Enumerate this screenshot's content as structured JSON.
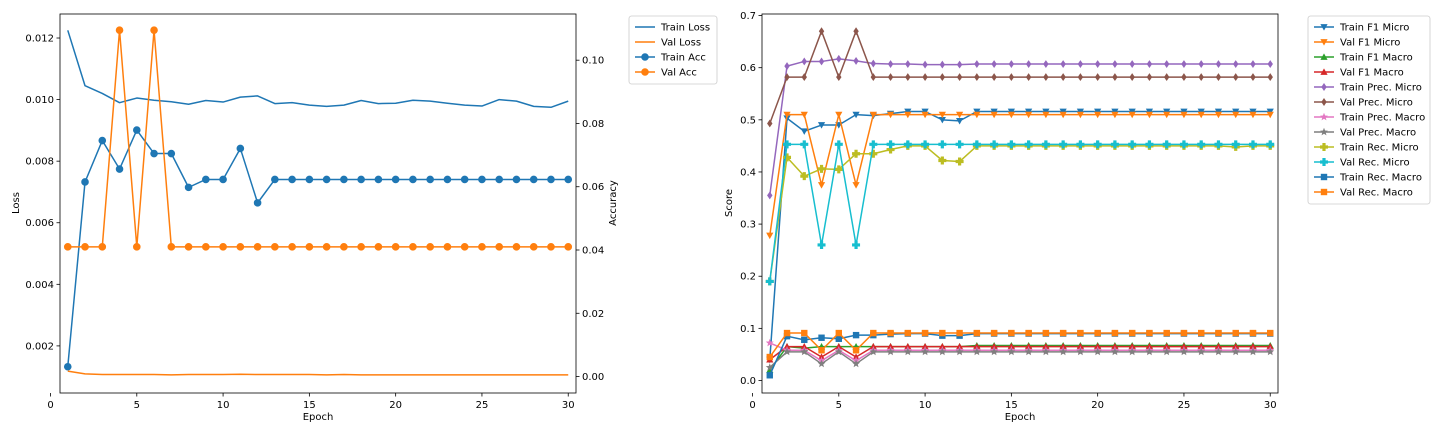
{
  "colors": {
    "blue": "#1f77b4",
    "orange": "#ff7f0e",
    "green": "#2ca02c",
    "red": "#d62728",
    "purple": "#9467bd",
    "brown": "#8c564b",
    "pink": "#e377c2",
    "gray": "#7f7f7f",
    "olive": "#bcbd22",
    "cyan": "#17becf"
  },
  "chart_data": [
    {
      "type": "line",
      "xlabel": "Epoch",
      "ylabel": "Loss",
      "y2label": "Accuracy",
      "xlim": [
        0.55,
        30.45
      ],
      "ylim": [
        0.00047,
        0.01278
      ],
      "y2lim": [
        -0.0052,
        0.1146
      ],
      "xticks": [
        0,
        5,
        10,
        15,
        20,
        25,
        30
      ],
      "xtick_labels": [
        "0",
        "5",
        "10",
        "15",
        "20",
        "25",
        "30"
      ],
      "yticks": [
        0.002,
        0.004,
        0.006,
        0.008,
        0.01,
        0.012
      ],
      "ytick_labels": [
        "0.002",
        "0.004",
        "0.006",
        "0.008",
        "0.010",
        "0.012"
      ],
      "y2ticks": [
        0.0,
        0.02,
        0.04,
        0.06,
        0.08,
        0.1
      ],
      "y2tick_labels": [
        "0.00",
        "0.02",
        "0.04",
        "0.06",
        "0.08",
        "0.10"
      ],
      "legend_position": "outside-right",
      "x": [
        1,
        2,
        3,
        4,
        5,
        6,
        7,
        8,
        9,
        10,
        11,
        12,
        13,
        14,
        15,
        16,
        17,
        18,
        19,
        20,
        21,
        22,
        23,
        24,
        25,
        26,
        27,
        28,
        29,
        30
      ],
      "series": [
        {
          "name": "Train Loss",
          "axis": "left",
          "color": "blue",
          "marker": "none",
          "values": [
            0.01225,
            0.01045,
            0.0102,
            0.0099,
            0.01005,
            0.00998,
            0.00993,
            0.00985,
            0.00997,
            0.00992,
            0.01008,
            0.01012,
            0.00987,
            0.0099,
            0.00982,
            0.00978,
            0.00982,
            0.00997,
            0.00987,
            0.00988,
            0.00998,
            0.00995,
            0.00988,
            0.00982,
            0.00979,
            0.01,
            0.00995,
            0.00978,
            0.00975,
            0.00995
          ]
        },
        {
          "name": "Val Loss",
          "axis": "left",
          "color": "orange",
          "marker": "none",
          "values": [
            0.00118,
            0.00109,
            0.00107,
            0.00107,
            0.00107,
            0.00107,
            0.00106,
            0.00107,
            0.00107,
            0.00107,
            0.00108,
            0.00107,
            0.00107,
            0.00107,
            0.00107,
            0.00106,
            0.00107,
            0.00106,
            0.00106,
            0.00106,
            0.00106,
            0.00106,
            0.00106,
            0.00106,
            0.00106,
            0.00106,
            0.00106,
            0.00106,
            0.00106,
            0.00106
          ]
        },
        {
          "name": "Train Acc",
          "axis": "right",
          "color": "blue",
          "marker": "circle",
          "values": [
            0.0031,
            0.0615,
            0.0746,
            0.0656,
            0.0779,
            0.0705,
            0.0705,
            0.0598,
            0.0623,
            0.0623,
            0.0721,
            0.0549,
            0.0623,
            0.0623,
            0.0623,
            0.0623,
            0.0623,
            0.0623,
            0.0623,
            0.0623,
            0.0623,
            0.0623,
            0.0623,
            0.0623,
            0.0623,
            0.0623,
            0.0623,
            0.0623,
            0.0623,
            0.0623
          ]
        },
        {
          "name": "Val Acc",
          "axis": "right",
          "color": "orange",
          "marker": "circle",
          "values": [
            0.041,
            0.041,
            0.041,
            0.1095,
            0.041,
            0.1095,
            0.041,
            0.041,
            0.041,
            0.041,
            0.041,
            0.041,
            0.041,
            0.041,
            0.041,
            0.041,
            0.041,
            0.041,
            0.041,
            0.041,
            0.041,
            0.041,
            0.041,
            0.041,
            0.041,
            0.041,
            0.041,
            0.041,
            0.041,
            0.041
          ]
        }
      ]
    },
    {
      "type": "line",
      "xlabel": "Epoch",
      "ylabel": "Score",
      "xlim": [
        0.55,
        30.45
      ],
      "ylim": [
        -0.024,
        0.703
      ],
      "xticks": [
        0,
        5,
        10,
        15,
        20,
        25,
        30
      ],
      "xtick_labels": [
        "0",
        "5",
        "10",
        "15",
        "20",
        "25",
        "30"
      ],
      "yticks": [
        0.0,
        0.1,
        0.2,
        0.3,
        0.4,
        0.5,
        0.6,
        0.7
      ],
      "ytick_labels": [
        "0.0",
        "0.1",
        "0.2",
        "0.3",
        "0.4",
        "0.5",
        "0.6",
        "0.7"
      ],
      "legend_position": "outside-right",
      "x": [
        1,
        2,
        3,
        4,
        5,
        6,
        7,
        8,
        9,
        10,
        11,
        12,
        13,
        14,
        15,
        16,
        17,
        18,
        19,
        20,
        21,
        22,
        23,
        24,
        25,
        26,
        27,
        28,
        29,
        30
      ],
      "series": [
        {
          "name": "Train F1 Micro",
          "color": "blue",
          "marker": "tri-down",
          "values": [
            0.04,
            0.503,
            0.478,
            0.49,
            0.49,
            0.51,
            0.508,
            0.512,
            0.516,
            0.516,
            0.5,
            0.498,
            0.516,
            0.516,
            0.516,
            0.516,
            0.516,
            0.516,
            0.516,
            0.516,
            0.516,
            0.516,
            0.516,
            0.516,
            0.516,
            0.516,
            0.516,
            0.516,
            0.516,
            0.516
          ]
        },
        {
          "name": "Val F1 Micro",
          "color": "orange",
          "marker": "tri-down",
          "values": [
            0.278,
            0.51,
            0.51,
            0.375,
            0.51,
            0.375,
            0.51,
            0.51,
            0.51,
            0.51,
            0.51,
            0.51,
            0.51,
            0.51,
            0.51,
            0.51,
            0.51,
            0.51,
            0.51,
            0.51,
            0.51,
            0.51,
            0.51,
            0.51,
            0.51,
            0.51,
            0.51,
            0.51,
            0.51,
            0.51
          ]
        },
        {
          "name": "Train F1 Macro",
          "color": "green",
          "marker": "tri-up",
          "values": [
            0.02,
            0.065,
            0.062,
            0.065,
            0.065,
            0.065,
            0.065,
            0.065,
            0.065,
            0.065,
            0.065,
            0.065,
            0.067,
            0.067,
            0.067,
            0.067,
            0.067,
            0.067,
            0.067,
            0.067,
            0.067,
            0.067,
            0.067,
            0.067,
            0.067,
            0.067,
            0.067,
            0.067,
            0.067,
            0.067
          ]
        },
        {
          "name": "Val F1 Macro",
          "color": "red",
          "marker": "tri-up",
          "values": [
            0.04,
            0.065,
            0.065,
            0.045,
            0.065,
            0.045,
            0.065,
            0.065,
            0.065,
            0.065,
            0.065,
            0.065,
            0.065,
            0.065,
            0.065,
            0.065,
            0.065,
            0.065,
            0.065,
            0.065,
            0.065,
            0.065,
            0.065,
            0.065,
            0.065,
            0.065,
            0.065,
            0.065,
            0.065,
            0.065
          ]
        },
        {
          "name": "Train Prec. Micro",
          "color": "purple",
          "marker": "diamond",
          "values": [
            0.355,
            0.603,
            0.612,
            0.612,
            0.617,
            0.613,
            0.608,
            0.607,
            0.607,
            0.606,
            0.606,
            0.606,
            0.607,
            0.607,
            0.607,
            0.607,
            0.607,
            0.607,
            0.607,
            0.607,
            0.607,
            0.607,
            0.607,
            0.607,
            0.607,
            0.607,
            0.607,
            0.607,
            0.607,
            0.607
          ]
        },
        {
          "name": "Val Prec. Micro",
          "color": "brown",
          "marker": "diamond",
          "values": [
            0.493,
            0.582,
            0.582,
            0.67,
            0.582,
            0.67,
            0.582,
            0.582,
            0.582,
            0.582,
            0.582,
            0.582,
            0.582,
            0.582,
            0.582,
            0.582,
            0.582,
            0.582,
            0.582,
            0.582,
            0.582,
            0.582,
            0.582,
            0.582,
            0.582,
            0.582,
            0.582,
            0.582,
            0.582,
            0.582
          ]
        },
        {
          "name": "Train Prec. Macro",
          "color": "pink",
          "marker": "star",
          "values": [
            0.072,
            0.058,
            0.058,
            0.038,
            0.058,
            0.038,
            0.058,
            0.058,
            0.058,
            0.058,
            0.058,
            0.058,
            0.058,
            0.058,
            0.058,
            0.058,
            0.058,
            0.058,
            0.058,
            0.058,
            0.058,
            0.058,
            0.058,
            0.058,
            0.058,
            0.058,
            0.058,
            0.058,
            0.058,
            0.058
          ]
        },
        {
          "name": "Val Prec. Macro",
          "color": "gray",
          "marker": "star",
          "values": [
            0.025,
            0.055,
            0.055,
            0.032,
            0.055,
            0.032,
            0.055,
            0.055,
            0.055,
            0.055,
            0.055,
            0.055,
            0.055,
            0.055,
            0.055,
            0.055,
            0.055,
            0.055,
            0.055,
            0.055,
            0.055,
            0.055,
            0.055,
            0.055,
            0.055,
            0.055,
            0.055,
            0.055,
            0.055,
            0.055
          ]
        },
        {
          "name": "Train Rec. Micro",
          "color": "olive",
          "marker": "plus",
          "values": [
            0.19,
            0.428,
            0.392,
            0.406,
            0.405,
            0.435,
            0.435,
            0.443,
            0.45,
            0.45,
            0.422,
            0.42,
            0.45,
            0.45,
            0.45,
            0.45,
            0.45,
            0.45,
            0.45,
            0.45,
            0.45,
            0.45,
            0.45,
            0.45,
            0.45,
            0.45,
            0.45,
            0.448,
            0.45,
            0.45
          ]
        },
        {
          "name": "Val Rec. Micro",
          "color": "cyan",
          "marker": "plus",
          "values": [
            0.19,
            0.453,
            0.453,
            0.26,
            0.453,
            0.26,
            0.453,
            0.453,
            0.453,
            0.453,
            0.453,
            0.453,
            0.453,
            0.453,
            0.453,
            0.453,
            0.453,
            0.453,
            0.453,
            0.453,
            0.453,
            0.453,
            0.453,
            0.453,
            0.453,
            0.453,
            0.453,
            0.453,
            0.453,
            0.453
          ]
        },
        {
          "name": "Train Rec. Macro",
          "color": "blue",
          "marker": "square",
          "values": [
            0.01,
            0.085,
            0.078,
            0.082,
            0.08,
            0.087,
            0.087,
            0.089,
            0.09,
            0.09,
            0.086,
            0.086,
            0.09,
            0.09,
            0.09,
            0.09,
            0.09,
            0.09,
            0.09,
            0.09,
            0.09,
            0.09,
            0.09,
            0.09,
            0.09,
            0.09,
            0.09,
            0.09,
            0.09,
            0.09
          ]
        },
        {
          "name": "Val Rec. Macro",
          "color": "orange",
          "marker": "square",
          "values": [
            0.045,
            0.091,
            0.091,
            0.058,
            0.091,
            0.058,
            0.091,
            0.091,
            0.091,
            0.091,
            0.091,
            0.091,
            0.091,
            0.091,
            0.091,
            0.091,
            0.091,
            0.091,
            0.091,
            0.091,
            0.091,
            0.091,
            0.091,
            0.091,
            0.091,
            0.091,
            0.091,
            0.091,
            0.091,
            0.091
          ]
        }
      ]
    }
  ]
}
